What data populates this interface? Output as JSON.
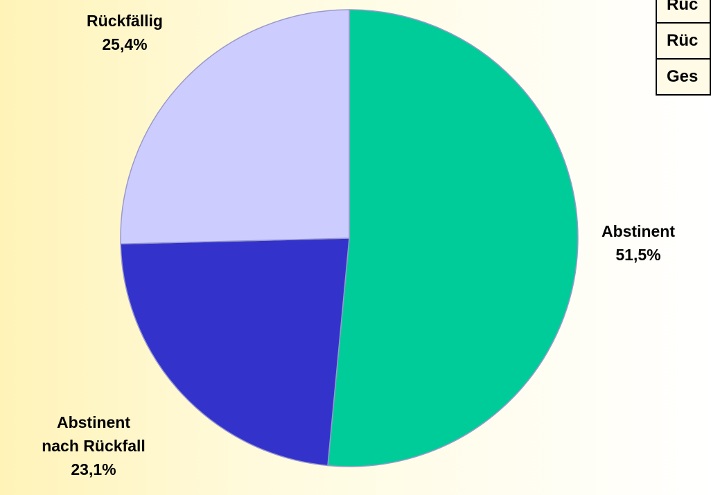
{
  "chart_data": {
    "type": "pie",
    "slices": [
      {
        "label": [
          "Abstinent"
        ],
        "percent_label": "51,5%",
        "value": 51.5,
        "color": "#00cc99"
      },
      {
        "label": [
          "Abstinent",
          "nach Rückfall"
        ],
        "percent_label": "23,1%",
        "value": 23.1,
        "color": "#3333cc"
      },
      {
        "label": [
          "Rückfällig"
        ],
        "percent_label": "25,4%",
        "value": 25.4,
        "color": "#ccccff"
      }
    ],
    "slice_border_color": "#9999cc"
  },
  "legend_table": {
    "rows": [
      "Rüc",
      "Rüc",
      "Ges"
    ]
  }
}
